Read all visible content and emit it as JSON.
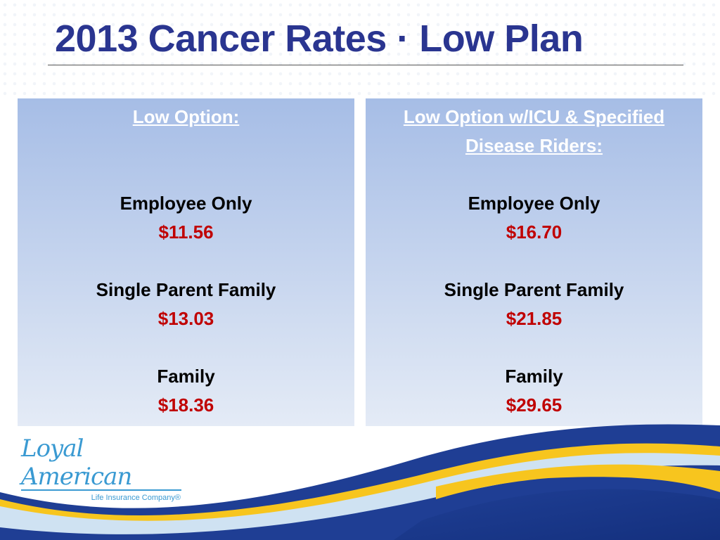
{
  "title": "2013 Cancer Rates · Low Plan",
  "colors": {
    "title": "#2a3590",
    "price": "#c00000",
    "heading": "#ffffff"
  },
  "panels": [
    {
      "heading": "Low Option:",
      "rows": [
        {
          "label": "Employee Only",
          "price": "$11.56"
        },
        {
          "label": "Single Parent Family",
          "price": "$13.03"
        },
        {
          "label": "Family",
          "price": "$18.36"
        }
      ]
    },
    {
      "heading": "Low Option w/ICU & Specified Disease Riders:",
      "rows": [
        {
          "label": "Employee Only",
          "price": "$16.70"
        },
        {
          "label": "Single Parent Family",
          "price": "$21.85"
        },
        {
          "label": "Family",
          "price": "$29.65"
        }
      ]
    }
  ],
  "logo": {
    "name": "Loyal American",
    "tagline": "Life Insurance Company®"
  }
}
